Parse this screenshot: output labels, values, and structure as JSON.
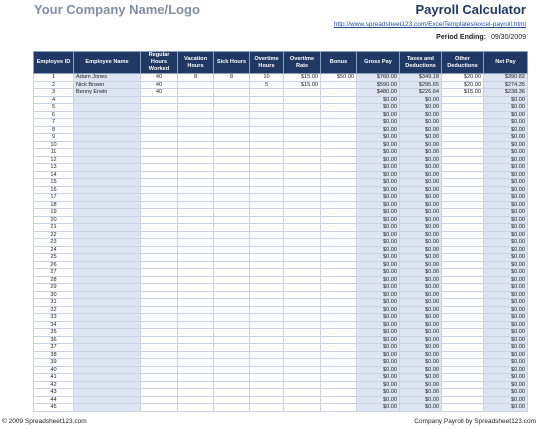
{
  "header": {
    "company": "Your Company Name/Logo",
    "title": "Payroll Calculator",
    "url": "http://www.spreadsheet123.com/ExcelTemplates/excel-payroll.html",
    "period_label": "Period Ending:",
    "period_value": "09/30/2009"
  },
  "table": {
    "headers": [
      "Employee ID",
      "Employee Name",
      "Regular Hours Worked",
      "Vacation Hours",
      "Sick Hours",
      "Overtime Hours",
      "Overtime Rate",
      "Bonus",
      "Gross Pay",
      "Taxes and Deductions",
      "Other Deductions",
      "Net Pay"
    ],
    "rows": [
      [
        "1",
        "Adam Jones",
        "40",
        "8",
        "8",
        "10",
        "$15.00",
        "$50.00",
        "$760.00",
        "$349.18",
        "$20.00",
        "$390.82"
      ],
      [
        "2",
        "Nick Brown",
        "40",
        null,
        null,
        "5",
        "$15.00",
        null,
        "$590.00",
        "$295.65",
        "$20.00",
        "$274.35"
      ],
      [
        "3",
        "Benny Erwin",
        "40",
        null,
        null,
        null,
        null,
        null,
        "$480.00",
        "$226.64",
        "$15.00",
        "$238.36"
      ],
      [
        "4",
        null,
        null,
        null,
        null,
        null,
        null,
        null,
        "$0.00",
        "$0.00",
        null,
        "$0.00"
      ],
      [
        "5",
        null,
        null,
        null,
        null,
        null,
        null,
        null,
        "$0.00",
        "$0.00",
        null,
        "$0.00"
      ],
      [
        "6",
        null,
        null,
        null,
        null,
        null,
        null,
        null,
        "$0.00",
        "$0.00",
        null,
        "$0.00"
      ],
      [
        "7",
        null,
        null,
        null,
        null,
        null,
        null,
        null,
        "$0.00",
        "$0.00",
        null,
        "$0.00"
      ],
      [
        "8",
        null,
        null,
        null,
        null,
        null,
        null,
        null,
        "$0.00",
        "$0.00",
        null,
        "$0.00"
      ],
      [
        "9",
        null,
        null,
        null,
        null,
        null,
        null,
        null,
        "$0.00",
        "$0.00",
        null,
        "$0.00"
      ],
      [
        "10",
        null,
        null,
        null,
        null,
        null,
        null,
        null,
        "$0.00",
        "$0.00",
        null,
        "$0.00"
      ],
      [
        "11",
        null,
        null,
        null,
        null,
        null,
        null,
        null,
        "$0.00",
        "$0.00",
        null,
        "$0.00"
      ],
      [
        "12",
        null,
        null,
        null,
        null,
        null,
        null,
        null,
        "$0.00",
        "$0.00",
        null,
        "$0.00"
      ],
      [
        "13",
        null,
        null,
        null,
        null,
        null,
        null,
        null,
        "$0.00",
        "$0.00",
        null,
        "$0.00"
      ],
      [
        "14",
        null,
        null,
        null,
        null,
        null,
        null,
        null,
        "$0.00",
        "$0.00",
        null,
        "$0.00"
      ],
      [
        "15",
        null,
        null,
        null,
        null,
        null,
        null,
        null,
        "$0.00",
        "$0.00",
        null,
        "$0.00"
      ],
      [
        "16",
        null,
        null,
        null,
        null,
        null,
        null,
        null,
        "$0.00",
        "$0.00",
        null,
        "$0.00"
      ],
      [
        "17",
        null,
        null,
        null,
        null,
        null,
        null,
        null,
        "$0.00",
        "$0.00",
        null,
        "$0.00"
      ],
      [
        "18",
        null,
        null,
        null,
        null,
        null,
        null,
        null,
        "$0.00",
        "$0.00",
        null,
        "$0.00"
      ],
      [
        "19",
        null,
        null,
        null,
        null,
        null,
        null,
        null,
        "$0.00",
        "$0.00",
        null,
        "$0.00"
      ],
      [
        "20",
        null,
        null,
        null,
        null,
        null,
        null,
        null,
        "$0.00",
        "$0.00",
        null,
        "$0.00"
      ],
      [
        "21",
        null,
        null,
        null,
        null,
        null,
        null,
        null,
        "$0.00",
        "$0.00",
        null,
        "$0.00"
      ],
      [
        "22",
        null,
        null,
        null,
        null,
        null,
        null,
        null,
        "$0.00",
        "$0.00",
        null,
        "$0.00"
      ],
      [
        "23",
        null,
        null,
        null,
        null,
        null,
        null,
        null,
        "$0.00",
        "$0.00",
        null,
        "$0.00"
      ],
      [
        "24",
        null,
        null,
        null,
        null,
        null,
        null,
        null,
        "$0.00",
        "$0.00",
        null,
        "$0.00"
      ],
      [
        "25",
        null,
        null,
        null,
        null,
        null,
        null,
        null,
        "$0.00",
        "$0.00",
        null,
        "$0.00"
      ],
      [
        "26",
        null,
        null,
        null,
        null,
        null,
        null,
        null,
        "$0.00",
        "$0.00",
        null,
        "$0.00"
      ],
      [
        "27",
        null,
        null,
        null,
        null,
        null,
        null,
        null,
        "$0.00",
        "$0.00",
        null,
        "$0.00"
      ],
      [
        "28",
        null,
        null,
        null,
        null,
        null,
        null,
        null,
        "$0.00",
        "$0.00",
        null,
        "$0.00"
      ],
      [
        "29",
        null,
        null,
        null,
        null,
        null,
        null,
        null,
        "$0.00",
        "$0.00",
        null,
        "$0.00"
      ],
      [
        "30",
        null,
        null,
        null,
        null,
        null,
        null,
        null,
        "$0.00",
        "$0.00",
        null,
        "$0.00"
      ],
      [
        "31",
        null,
        null,
        null,
        null,
        null,
        null,
        null,
        "$0.00",
        "$0.00",
        null,
        "$0.00"
      ],
      [
        "32",
        null,
        null,
        null,
        null,
        null,
        null,
        null,
        "$0.00",
        "$0.00",
        null,
        "$0.00"
      ],
      [
        "33",
        null,
        null,
        null,
        null,
        null,
        null,
        null,
        "$0.00",
        "$0.00",
        null,
        "$0.00"
      ],
      [
        "34",
        null,
        null,
        null,
        null,
        null,
        null,
        null,
        "$0.00",
        "$0.00",
        null,
        "$0.00"
      ],
      [
        "35",
        null,
        null,
        null,
        null,
        null,
        null,
        null,
        "$0.00",
        "$0.00",
        null,
        "$0.00"
      ],
      [
        "36",
        null,
        null,
        null,
        null,
        null,
        null,
        null,
        "$0.00",
        "$0.00",
        null,
        "$0.00"
      ],
      [
        "37",
        null,
        null,
        null,
        null,
        null,
        null,
        null,
        "$0.00",
        "$0.00",
        null,
        "$0.00"
      ],
      [
        "38",
        null,
        null,
        null,
        null,
        null,
        null,
        null,
        "$0.00",
        "$0.00",
        null,
        "$0.00"
      ],
      [
        "39",
        null,
        null,
        null,
        null,
        null,
        null,
        null,
        "$0.00",
        "$0.00",
        null,
        "$0.00"
      ],
      [
        "40",
        null,
        null,
        null,
        null,
        null,
        null,
        null,
        "$0.00",
        "$0.00",
        null,
        "$0.00"
      ],
      [
        "41",
        null,
        null,
        null,
        null,
        null,
        null,
        null,
        "$0.00",
        "$0.00",
        null,
        "$0.00"
      ],
      [
        "42",
        null,
        null,
        null,
        null,
        null,
        null,
        null,
        "$0.00",
        "$0.00",
        null,
        "$0.00"
      ],
      [
        "43",
        null,
        null,
        null,
        null,
        null,
        null,
        null,
        "$0.00",
        "$0.00",
        null,
        "$0.00"
      ],
      [
        "44",
        null,
        null,
        null,
        null,
        null,
        null,
        null,
        "$0.00",
        "$0.00",
        null,
        "$0.00"
      ],
      [
        "45",
        null,
        null,
        null,
        null,
        null,
        null,
        null,
        "$0.00",
        "$0.00",
        null,
        "$0.00"
      ]
    ]
  },
  "footer": {
    "left": "© 2009 Spreadsheet123.com",
    "right": "Company Payroll by Spreadsheet123.com"
  }
}
